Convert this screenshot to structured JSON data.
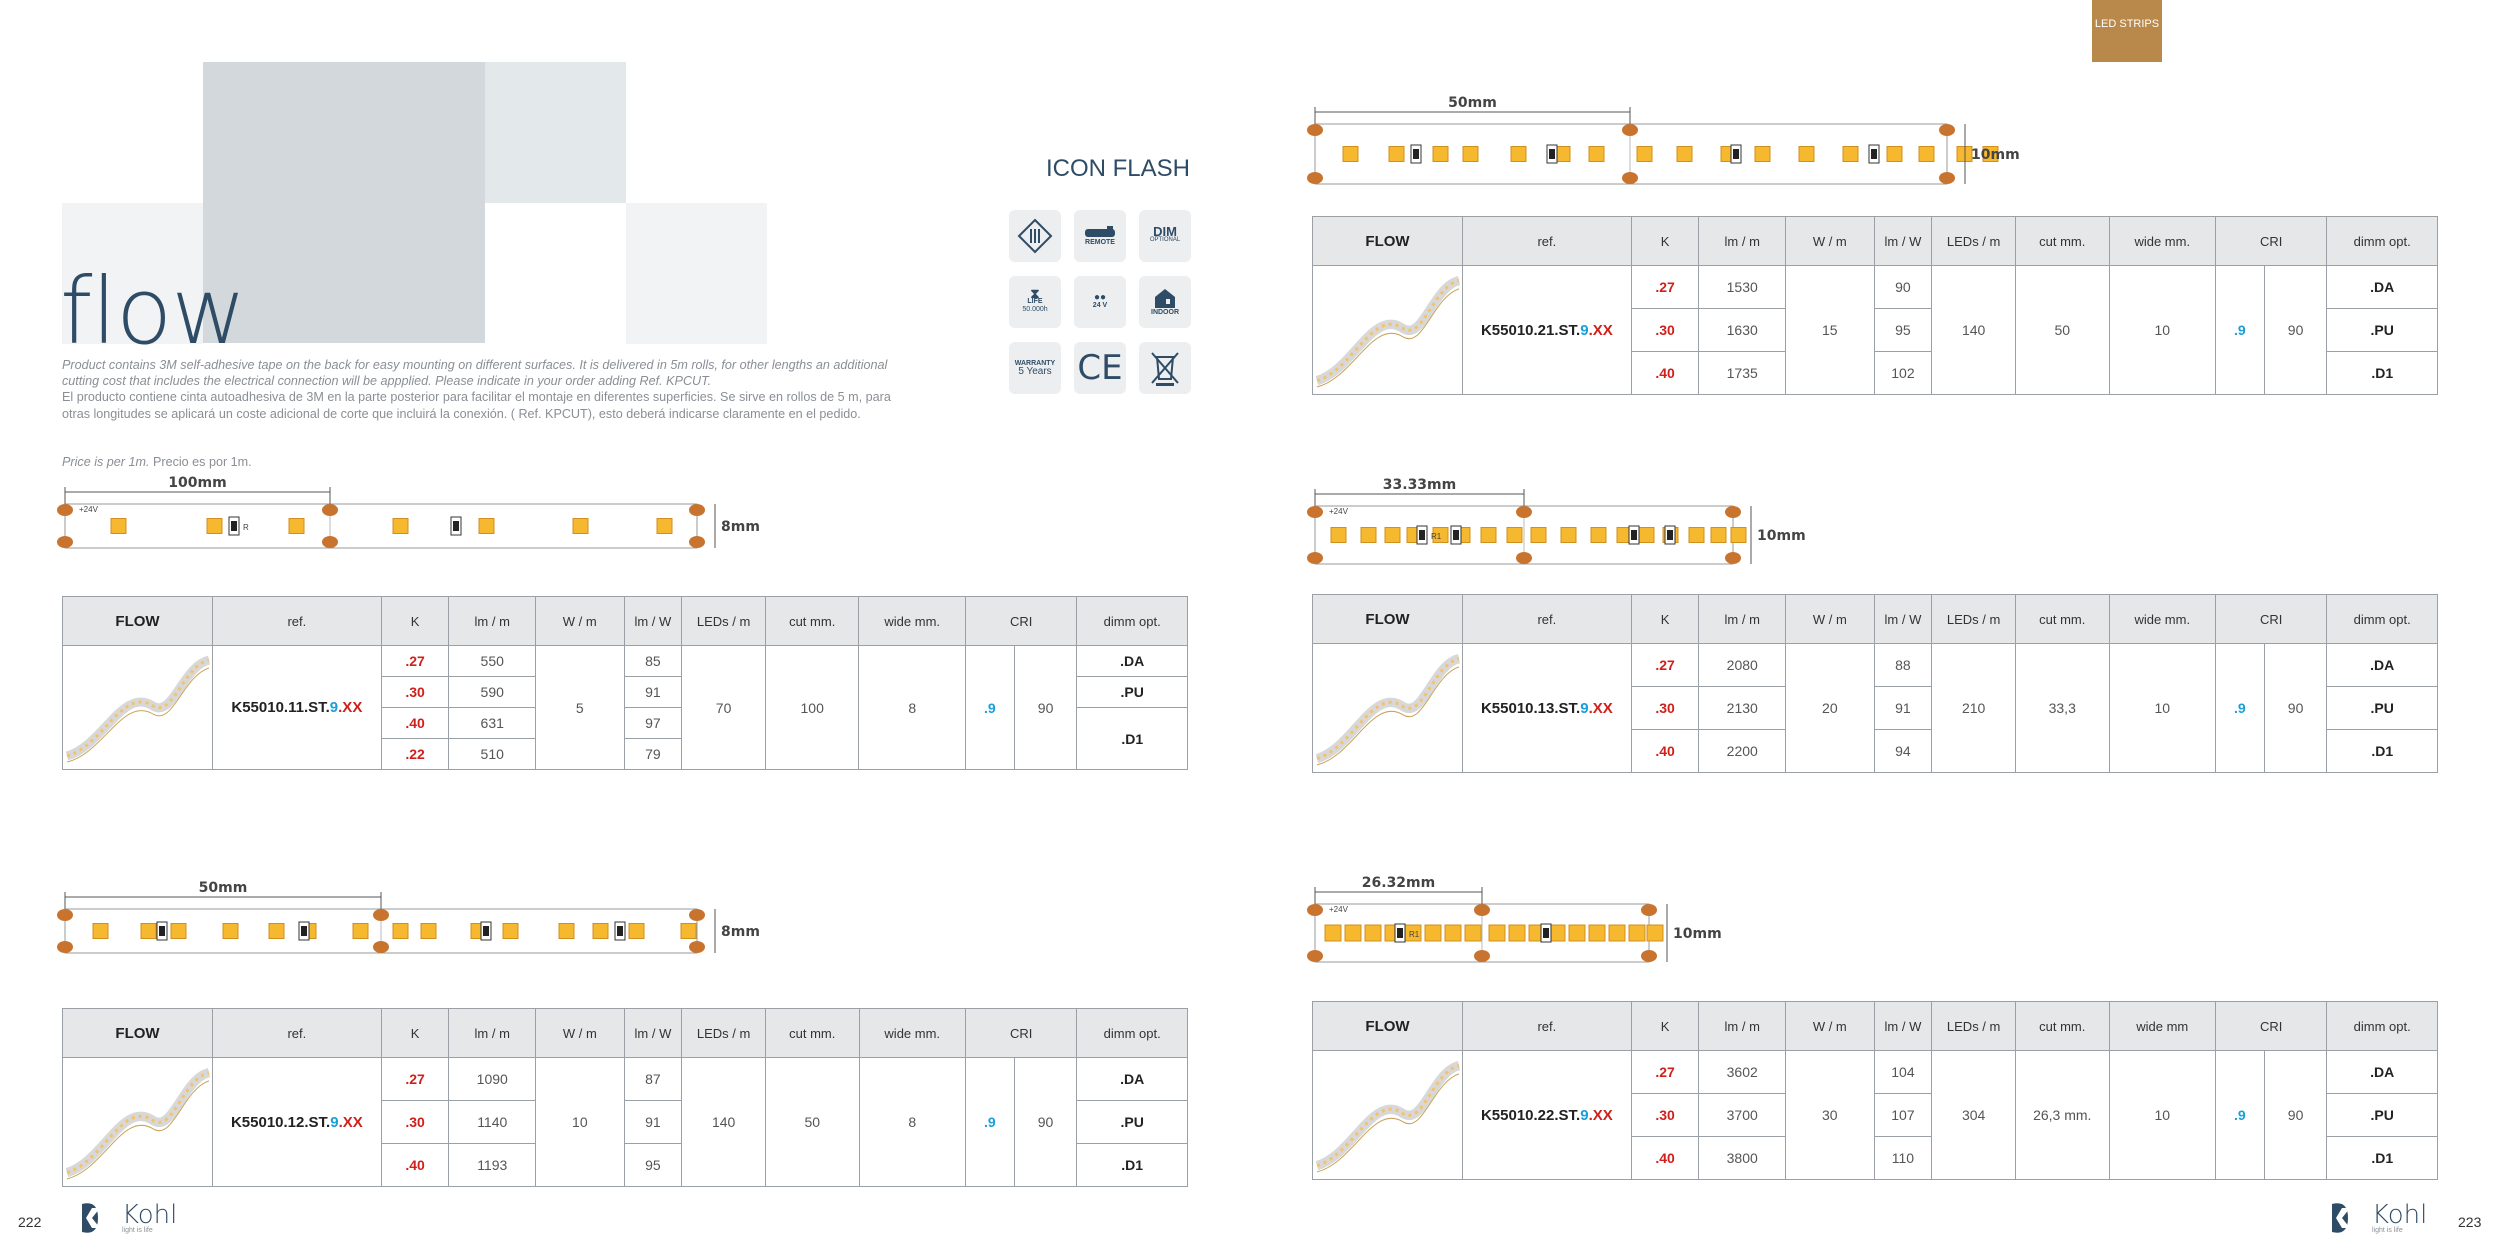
{
  "header": {
    "product": "flow",
    "description_en": "Product contains 3M self-adhesive tape on the back for easy mounting on different surfaces. It is delivered in 5m rolls, for other lengths an additional cutting cost that includes the electrical connection will be appplied. Please indicate in your order adding Ref. KPCUT.",
    "description_es": "El producto contiene cinta autoadhesiva de 3M en la parte posterior para facilitar el montaje en diferentes superficies. Se sirve en rollos de 5 m, para otras longitudes se aplicará un coste adicional de corte que incluirá la conexión. ( Ref. KPCUT), esto deberá indicarse claramente en el pedido.",
    "price_en": "Price is per 1m.",
    "price_es": "Precio es por 1m.",
    "icons_title": "ICON FLASH",
    "badge": "LED STRIPS"
  },
  "icons": [
    {
      "name": "class-iii-icon",
      "text": ""
    },
    {
      "name": "remote-icon",
      "text": "REMOTE"
    },
    {
      "name": "dim-icon",
      "text": "DIM",
      "sub": "OPTIONAL"
    },
    {
      "name": "life-icon",
      "text": "LIFE",
      "sub": "50.000h"
    },
    {
      "name": "voltage-icon",
      "text": "24 V"
    },
    {
      "name": "indoor-icon",
      "text": "INDOOR"
    },
    {
      "name": "warranty-icon",
      "text": "WARRANTY",
      "sub": "5 Years"
    },
    {
      "name": "ce-icon",
      "text": "CE"
    },
    {
      "name": "weee-icon",
      "text": ""
    }
  ],
  "strips": [
    {
      "dim": "100mm",
      "height": "8mm",
      "label_v": "+24V",
      "label_r": "R"
    },
    {
      "dim": "50mm",
      "height": "8mm"
    },
    {
      "dim": "50mm",
      "height": "10mm"
    },
    {
      "dim": "33.33mm",
      "height": "10mm",
      "label_v": "+24V",
      "label_r": "R1"
    },
    {
      "dim": "26.32mm",
      "height": "10mm",
      "label_v": "+24V",
      "label_r": "R1"
    }
  ],
  "table_headers": {
    "flow": "FLOW",
    "ref": "ref.",
    "k": "K",
    "lm_m": "lm / m",
    "w_m": "W / m",
    "lm_w": "lm / W",
    "leds_m": "LEDs / m",
    "cut": "cut mm.",
    "wide": "wide mm.",
    "wide_alt": "wide mm",
    "cri": "CRI",
    "dimm": "dimm opt."
  },
  "tables": [
    {
      "ref_prefix": "K55010.11.ST.",
      "ref_mid": "9",
      "ref_suffix": ".XX",
      "k": [
        ".27",
        ".30",
        ".40",
        ".22"
      ],
      "lm": [
        "550",
        "590",
        "631",
        "510"
      ],
      "w": "5",
      "lmw": [
        "85",
        "91",
        "97",
        "79"
      ],
      "leds": "70",
      "cut": "100",
      "wide": "8",
      "cri_a": ".9",
      "cri_b": "90",
      "dimm": [
        ".DA",
        ".PU",
        ".D1"
      ]
    },
    {
      "ref_prefix": "K55010.12.ST.",
      "ref_mid": "9",
      "ref_suffix": ".XX",
      "k": [
        ".27",
        ".30",
        ".40"
      ],
      "lm": [
        "1090",
        "1140",
        "1193"
      ],
      "w": "10",
      "lmw": [
        "87",
        "91",
        "95"
      ],
      "leds": "140",
      "cut": "50",
      "wide": "8",
      "cri_a": ".9",
      "cri_b": "90",
      "dimm": [
        ".DA",
        ".PU",
        ".D1"
      ]
    },
    {
      "ref_prefix": "K55010.21.ST.",
      "ref_mid": "9",
      "ref_suffix": ".XX",
      "k": [
        ".27",
        ".30",
        ".40"
      ],
      "lm": [
        "1530",
        "1630",
        "1735"
      ],
      "w": "15",
      "lmw": [
        "90",
        "95",
        "102"
      ],
      "leds": "140",
      "cut": "50",
      "wide": "10",
      "cri_a": ".9",
      "cri_b": "90",
      "dimm": [
        ".DA",
        ".PU",
        ".D1"
      ]
    },
    {
      "ref_prefix": "K55010.13.ST.",
      "ref_mid": "9",
      "ref_suffix": ".XX",
      "k": [
        ".27",
        ".30",
        ".40"
      ],
      "lm": [
        "2080",
        "2130",
        "2200"
      ],
      "w": "20",
      "lmw": [
        "88",
        "91",
        "94"
      ],
      "leds": "210",
      "cut": "33,3",
      "wide": "10",
      "cri_a": ".9",
      "cri_b": "90",
      "dimm": [
        ".DA",
        ".PU",
        ".D1"
      ]
    },
    {
      "ref_prefix": "K55010.22.ST.",
      "ref_mid": "9",
      "ref_suffix": ".XX",
      "k": [
        ".27",
        ".30",
        ".40"
      ],
      "lm": [
        "3602",
        "3700",
        "3800"
      ],
      "w": "30",
      "lmw": [
        "104",
        "107",
        "110"
      ],
      "leds": "304",
      "cut": "26,3 mm.",
      "wide": "10",
      "cri_a": ".9",
      "cri_b": "90",
      "dimm": [
        ".DA",
        ".PU",
        ".D1"
      ]
    }
  ],
  "footer": {
    "page_left": "222",
    "page_right": "223",
    "logo_text": "Kohl",
    "logo_sub": "light is life"
  },
  "colors": {
    "accent": "#2f4c66",
    "red": "#d0201b",
    "blue": "#1a9fd8",
    "badge": "#b8894a"
  }
}
